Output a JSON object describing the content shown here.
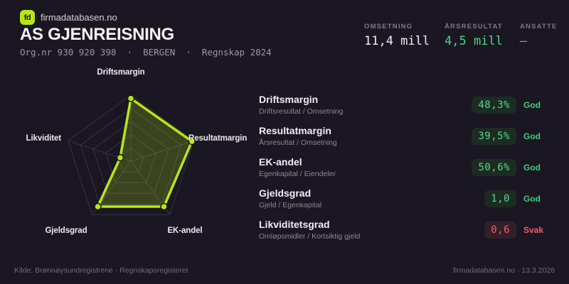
{
  "brand": {
    "logo_text": "fd",
    "site_name": "firmadatabasen.no"
  },
  "header": {
    "company_name": "AS GJENREISNING",
    "org_line": "Org.nr 930 920 398  ·  BERGEN  ·  Regnskap 2024"
  },
  "stats": {
    "omsetning": {
      "label": "OMSETNING",
      "value": "11,4 mill"
    },
    "arsresultat": {
      "label": "ÅRSRESULTAT",
      "value": "4,5 mill"
    },
    "ansatte": {
      "label": "ANSATTE",
      "value": "–"
    }
  },
  "chart_data": {
    "type": "radar",
    "axes": [
      "Driftsmargin",
      "Resultatmargin",
      "EK-andel",
      "Gjeldsgrad",
      "Likviditet"
    ],
    "values_normalized": [
      0.95,
      0.97,
      0.85,
      0.85,
      0.17
    ],
    "rings": 5,
    "grid": "pentagon-web with spokes",
    "legend": "none",
    "accent_color": "#b6e715",
    "fill_color": "rgba(182,231,21,0.22)",
    "web_color": "#37333f"
  },
  "metrics": [
    {
      "name": "Driftsmargin",
      "formula": "Driftsresultat / Omsetning",
      "value": "48,3%",
      "status": "God",
      "tone": "good"
    },
    {
      "name": "Resultatmargin",
      "formula": "Årsresultat / Omsetning",
      "value": "39,5%",
      "status": "God",
      "tone": "good"
    },
    {
      "name": "EK-andel",
      "formula": "Egenkapital / Eiendeler",
      "value": "50,6%",
      "status": "God",
      "tone": "good"
    },
    {
      "name": "Gjeldsgrad",
      "formula": "Gjeld / Egenkapital",
      "value": "1,0",
      "status": "God",
      "tone": "good"
    },
    {
      "name": "Likviditetsgrad",
      "formula": "Omløpsmidler / Kortsiktig gjeld",
      "value": "0,6",
      "status": "Svak",
      "tone": "weak"
    }
  ],
  "footer": {
    "source": "Kilde: Brønnøysundregistrene · Regnskapsregisteret",
    "site_date": "firmadatabasen.no · 13.3.2026"
  },
  "colors": {
    "background": "#1a1622",
    "accent_lime": "#b6e715",
    "good_green": "#4fd584",
    "weak_red": "#ee5f6b"
  }
}
